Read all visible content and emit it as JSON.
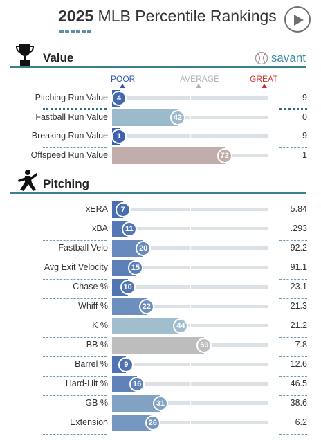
{
  "header": {
    "title_year": "2025",
    "title_rest": " MLB Percentile Rankings"
  },
  "value_section": {
    "label": "Value",
    "brand": "savant"
  },
  "scale": {
    "poor": "POOR",
    "average": "AVERAGE",
    "great": "GREAT"
  },
  "value_rows": [
    {
      "label": "Pitching Run Value",
      "percentile": 4,
      "value": "-9"
    },
    {
      "label": "Fastball Run Value",
      "percentile": 42,
      "value": "0"
    },
    {
      "label": "Breaking Run Value",
      "percentile": 1,
      "value": "-9"
    },
    {
      "label": "Offspeed Run Value",
      "percentile": 72,
      "value": "1"
    }
  ],
  "pitching_section": {
    "label": "Pitching"
  },
  "pitching_rows": [
    {
      "label": "xERA",
      "percentile": 7,
      "value": "5.84"
    },
    {
      "label": "xBA",
      "percentile": 11,
      "value": ".293"
    },
    {
      "label": "Fastball Velo",
      "percentile": 20,
      "value": "92.2"
    },
    {
      "label": "Avg Exit Velocity",
      "percentile": 15,
      "value": "91.1"
    },
    {
      "label": "Chase %",
      "percentile": 10,
      "value": "23.1"
    },
    {
      "label": "Whiff %",
      "percentile": 22,
      "value": "21.3"
    },
    {
      "label": "K %",
      "percentile": 44,
      "value": "21.2"
    },
    {
      "label": "BB %",
      "percentile": 59,
      "value": "7.8",
      "neutral": true
    },
    {
      "label": "Barrel %",
      "percentile": 9,
      "value": "12.6"
    },
    {
      "label": "Hard-Hit %",
      "percentile": 16,
      "value": "46.5"
    },
    {
      "label": "GB %",
      "percentile": 31,
      "value": "38.6"
    },
    {
      "label": "Extension",
      "percentile": 26,
      "value": "6.2"
    }
  ],
  "colors": {
    "poor": "#3a5fad",
    "average": "#aecbd2",
    "great": "#d9867a",
    "neutral": "#bdbdbd",
    "accent": "#3d7f8e"
  },
  "icons": {
    "play": "play-icon",
    "trophy": "trophy-icon",
    "pitcher": "pitcher-icon",
    "savant_ball": "baseball-icon"
  }
}
